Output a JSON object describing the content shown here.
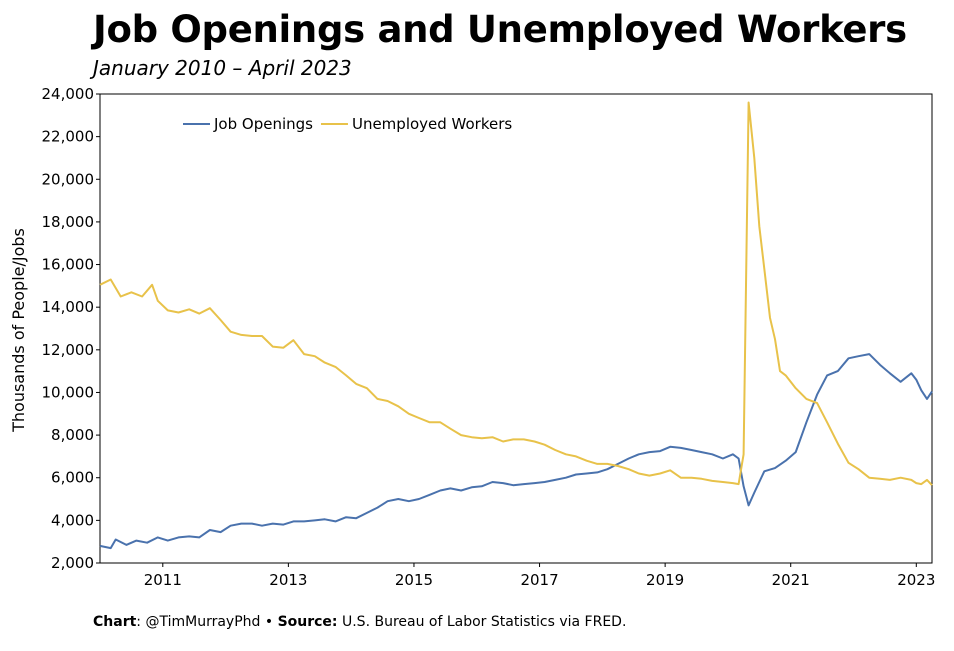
{
  "title": "Job Openings and Unemployed Workers",
  "subtitle": "January 2010 – April 2023",
  "footer": {
    "chart_label": "Chart",
    "chart_value": ": @TimMurrayPhd • ",
    "source_label": "Source:",
    "source_value": " U.S. Bureau of Labor Statistics via FRED."
  },
  "colors": {
    "job_openings": "#4a72ad",
    "unemployed": "#e8c24a",
    "axis": "#000000"
  },
  "chart_data": {
    "type": "line",
    "title": "Job Openings and Unemployed Workers",
    "subtitle": "January 2010 – April 2023",
    "xlabel": "",
    "ylabel": "Thousands of People/Jobs",
    "xlim": [
      2010.0,
      2023.25
    ],
    "ylim": [
      2000,
      24000
    ],
    "x_ticks": [
      "2011",
      "2013",
      "2015",
      "2017",
      "2019",
      "2021",
      "2023"
    ],
    "y_ticks": [
      "2,000",
      "4,000",
      "6,000",
      "8,000",
      "10,000",
      "12,000",
      "14,000",
      "16,000",
      "18,000",
      "20,000",
      "22,000",
      "24,000"
    ],
    "legend_position": "top-left",
    "grid": false,
    "series": [
      {
        "name": "Job Openings",
        "color": "#4a72ad",
        "points": [
          [
            2010.0,
            2800
          ],
          [
            2010.17,
            2700
          ],
          [
            2010.25,
            3100
          ],
          [
            2010.42,
            2850
          ],
          [
            2010.58,
            3050
          ],
          [
            2010.75,
            2950
          ],
          [
            2010.92,
            3200
          ],
          [
            2011.08,
            3050
          ],
          [
            2011.25,
            3200
          ],
          [
            2011.42,
            3250
          ],
          [
            2011.58,
            3200
          ],
          [
            2011.75,
            3550
          ],
          [
            2011.92,
            3450
          ],
          [
            2012.08,
            3750
          ],
          [
            2012.25,
            3850
          ],
          [
            2012.42,
            3850
          ],
          [
            2012.58,
            3750
          ],
          [
            2012.75,
            3850
          ],
          [
            2012.92,
            3800
          ],
          [
            2013.08,
            3950
          ],
          [
            2013.25,
            3950
          ],
          [
            2013.42,
            4000
          ],
          [
            2013.58,
            4050
          ],
          [
            2013.75,
            3950
          ],
          [
            2013.92,
            4150
          ],
          [
            2014.08,
            4100
          ],
          [
            2014.25,
            4350
          ],
          [
            2014.42,
            4600
          ],
          [
            2014.58,
            4900
          ],
          [
            2014.75,
            5000
          ],
          [
            2014.92,
            4900
          ],
          [
            2015.08,
            5000
          ],
          [
            2015.25,
            5200
          ],
          [
            2015.42,
            5400
          ],
          [
            2015.58,
            5500
          ],
          [
            2015.75,
            5400
          ],
          [
            2015.92,
            5550
          ],
          [
            2016.08,
            5600
          ],
          [
            2016.25,
            5800
          ],
          [
            2016.42,
            5750
          ],
          [
            2016.58,
            5650
          ],
          [
            2016.75,
            5700
          ],
          [
            2016.92,
            5750
          ],
          [
            2017.08,
            5800
          ],
          [
            2017.25,
            5900
          ],
          [
            2017.42,
            6000
          ],
          [
            2017.58,
            6150
          ],
          [
            2017.75,
            6200
          ],
          [
            2017.92,
            6250
          ],
          [
            2018.08,
            6400
          ],
          [
            2018.25,
            6650
          ],
          [
            2018.42,
            6900
          ],
          [
            2018.58,
            7100
          ],
          [
            2018.75,
            7200
          ],
          [
            2018.92,
            7250
          ],
          [
            2019.08,
            7450
          ],
          [
            2019.25,
            7400
          ],
          [
            2019.42,
            7300
          ],
          [
            2019.58,
            7200
          ],
          [
            2019.75,
            7100
          ],
          [
            2019.92,
            6900
          ],
          [
            2020.08,
            7100
          ],
          [
            2020.17,
            6900
          ],
          [
            2020.25,
            5600
          ],
          [
            2020.33,
            4700
          ],
          [
            2020.42,
            5300
          ],
          [
            2020.58,
            6300
          ],
          [
            2020.75,
            6450
          ],
          [
            2020.92,
            6800
          ],
          [
            2021.08,
            7200
          ],
          [
            2021.25,
            8600
          ],
          [
            2021.42,
            9900
          ],
          [
            2021.58,
            10800
          ],
          [
            2021.75,
            11000
          ],
          [
            2021.92,
            11600
          ],
          [
            2022.08,
            11700
          ],
          [
            2022.25,
            11800
          ],
          [
            2022.42,
            11300
          ],
          [
            2022.58,
            10900
          ],
          [
            2022.75,
            10500
          ],
          [
            2022.92,
            10900
          ],
          [
            2023.0,
            10600
          ],
          [
            2023.08,
            10100
          ],
          [
            2023.17,
            9700
          ],
          [
            2023.25,
            10050
          ]
        ]
      },
      {
        "name": "Unemployed Workers",
        "color": "#e8c24a",
        "points": [
          [
            2010.0,
            15050
          ],
          [
            2010.17,
            15300
          ],
          [
            2010.33,
            14500
          ],
          [
            2010.5,
            14700
          ],
          [
            2010.67,
            14500
          ],
          [
            2010.83,
            15050
          ],
          [
            2010.92,
            14300
          ],
          [
            2011.08,
            13850
          ],
          [
            2011.25,
            13750
          ],
          [
            2011.42,
            13900
          ],
          [
            2011.58,
            13700
          ],
          [
            2011.75,
            13950
          ],
          [
            2011.92,
            13400
          ],
          [
            2012.08,
            12850
          ],
          [
            2012.25,
            12700
          ],
          [
            2012.42,
            12650
          ],
          [
            2012.58,
            12650
          ],
          [
            2012.75,
            12150
          ],
          [
            2012.92,
            12100
          ],
          [
            2013.08,
            12450
          ],
          [
            2013.25,
            11800
          ],
          [
            2013.42,
            11700
          ],
          [
            2013.58,
            11400
          ],
          [
            2013.75,
            11200
          ],
          [
            2013.92,
            10800
          ],
          [
            2014.08,
            10400
          ],
          [
            2014.25,
            10200
          ],
          [
            2014.42,
            9700
          ],
          [
            2014.58,
            9600
          ],
          [
            2014.75,
            9350
          ],
          [
            2014.92,
            9000
          ],
          [
            2015.08,
            8800
          ],
          [
            2015.25,
            8600
          ],
          [
            2015.42,
            8600
          ],
          [
            2015.58,
            8300
          ],
          [
            2015.75,
            8000
          ],
          [
            2015.92,
            7900
          ],
          [
            2016.08,
            7850
          ],
          [
            2016.25,
            7900
          ],
          [
            2016.42,
            7700
          ],
          [
            2016.58,
            7800
          ],
          [
            2016.75,
            7800
          ],
          [
            2016.92,
            7700
          ],
          [
            2017.08,
            7550
          ],
          [
            2017.25,
            7300
          ],
          [
            2017.42,
            7100
          ],
          [
            2017.58,
            7000
          ],
          [
            2017.75,
            6800
          ],
          [
            2017.92,
            6650
          ],
          [
            2018.08,
            6650
          ],
          [
            2018.25,
            6550
          ],
          [
            2018.42,
            6400
          ],
          [
            2018.58,
            6200
          ],
          [
            2018.75,
            6100
          ],
          [
            2018.92,
            6200
          ],
          [
            2019.08,
            6350
          ],
          [
            2019.25,
            6000
          ],
          [
            2019.42,
            6000
          ],
          [
            2019.58,
            5950
          ],
          [
            2019.75,
            5850
          ],
          [
            2019.92,
            5800
          ],
          [
            2020.08,
            5750
          ],
          [
            2020.17,
            5700
          ],
          [
            2020.25,
            7100
          ],
          [
            2020.33,
            23600
          ],
          [
            2020.42,
            21000
          ],
          [
            2020.5,
            17800
          ],
          [
            2020.58,
            15800
          ],
          [
            2020.67,
            13500
          ],
          [
            2020.75,
            12500
          ],
          [
            2020.83,
            11000
          ],
          [
            2020.92,
            10800
          ],
          [
            2021.08,
            10200
          ],
          [
            2021.25,
            9700
          ],
          [
            2021.42,
            9500
          ],
          [
            2021.58,
            8600
          ],
          [
            2021.75,
            7600
          ],
          [
            2021.92,
            6700
          ],
          [
            2022.08,
            6400
          ],
          [
            2022.25,
            6000
          ],
          [
            2022.42,
            5950
          ],
          [
            2022.58,
            5900
          ],
          [
            2022.75,
            6000
          ],
          [
            2022.92,
            5900
          ],
          [
            2023.0,
            5750
          ],
          [
            2023.08,
            5700
          ],
          [
            2023.17,
            5900
          ],
          [
            2023.25,
            5650
          ]
        ]
      }
    ]
  }
}
